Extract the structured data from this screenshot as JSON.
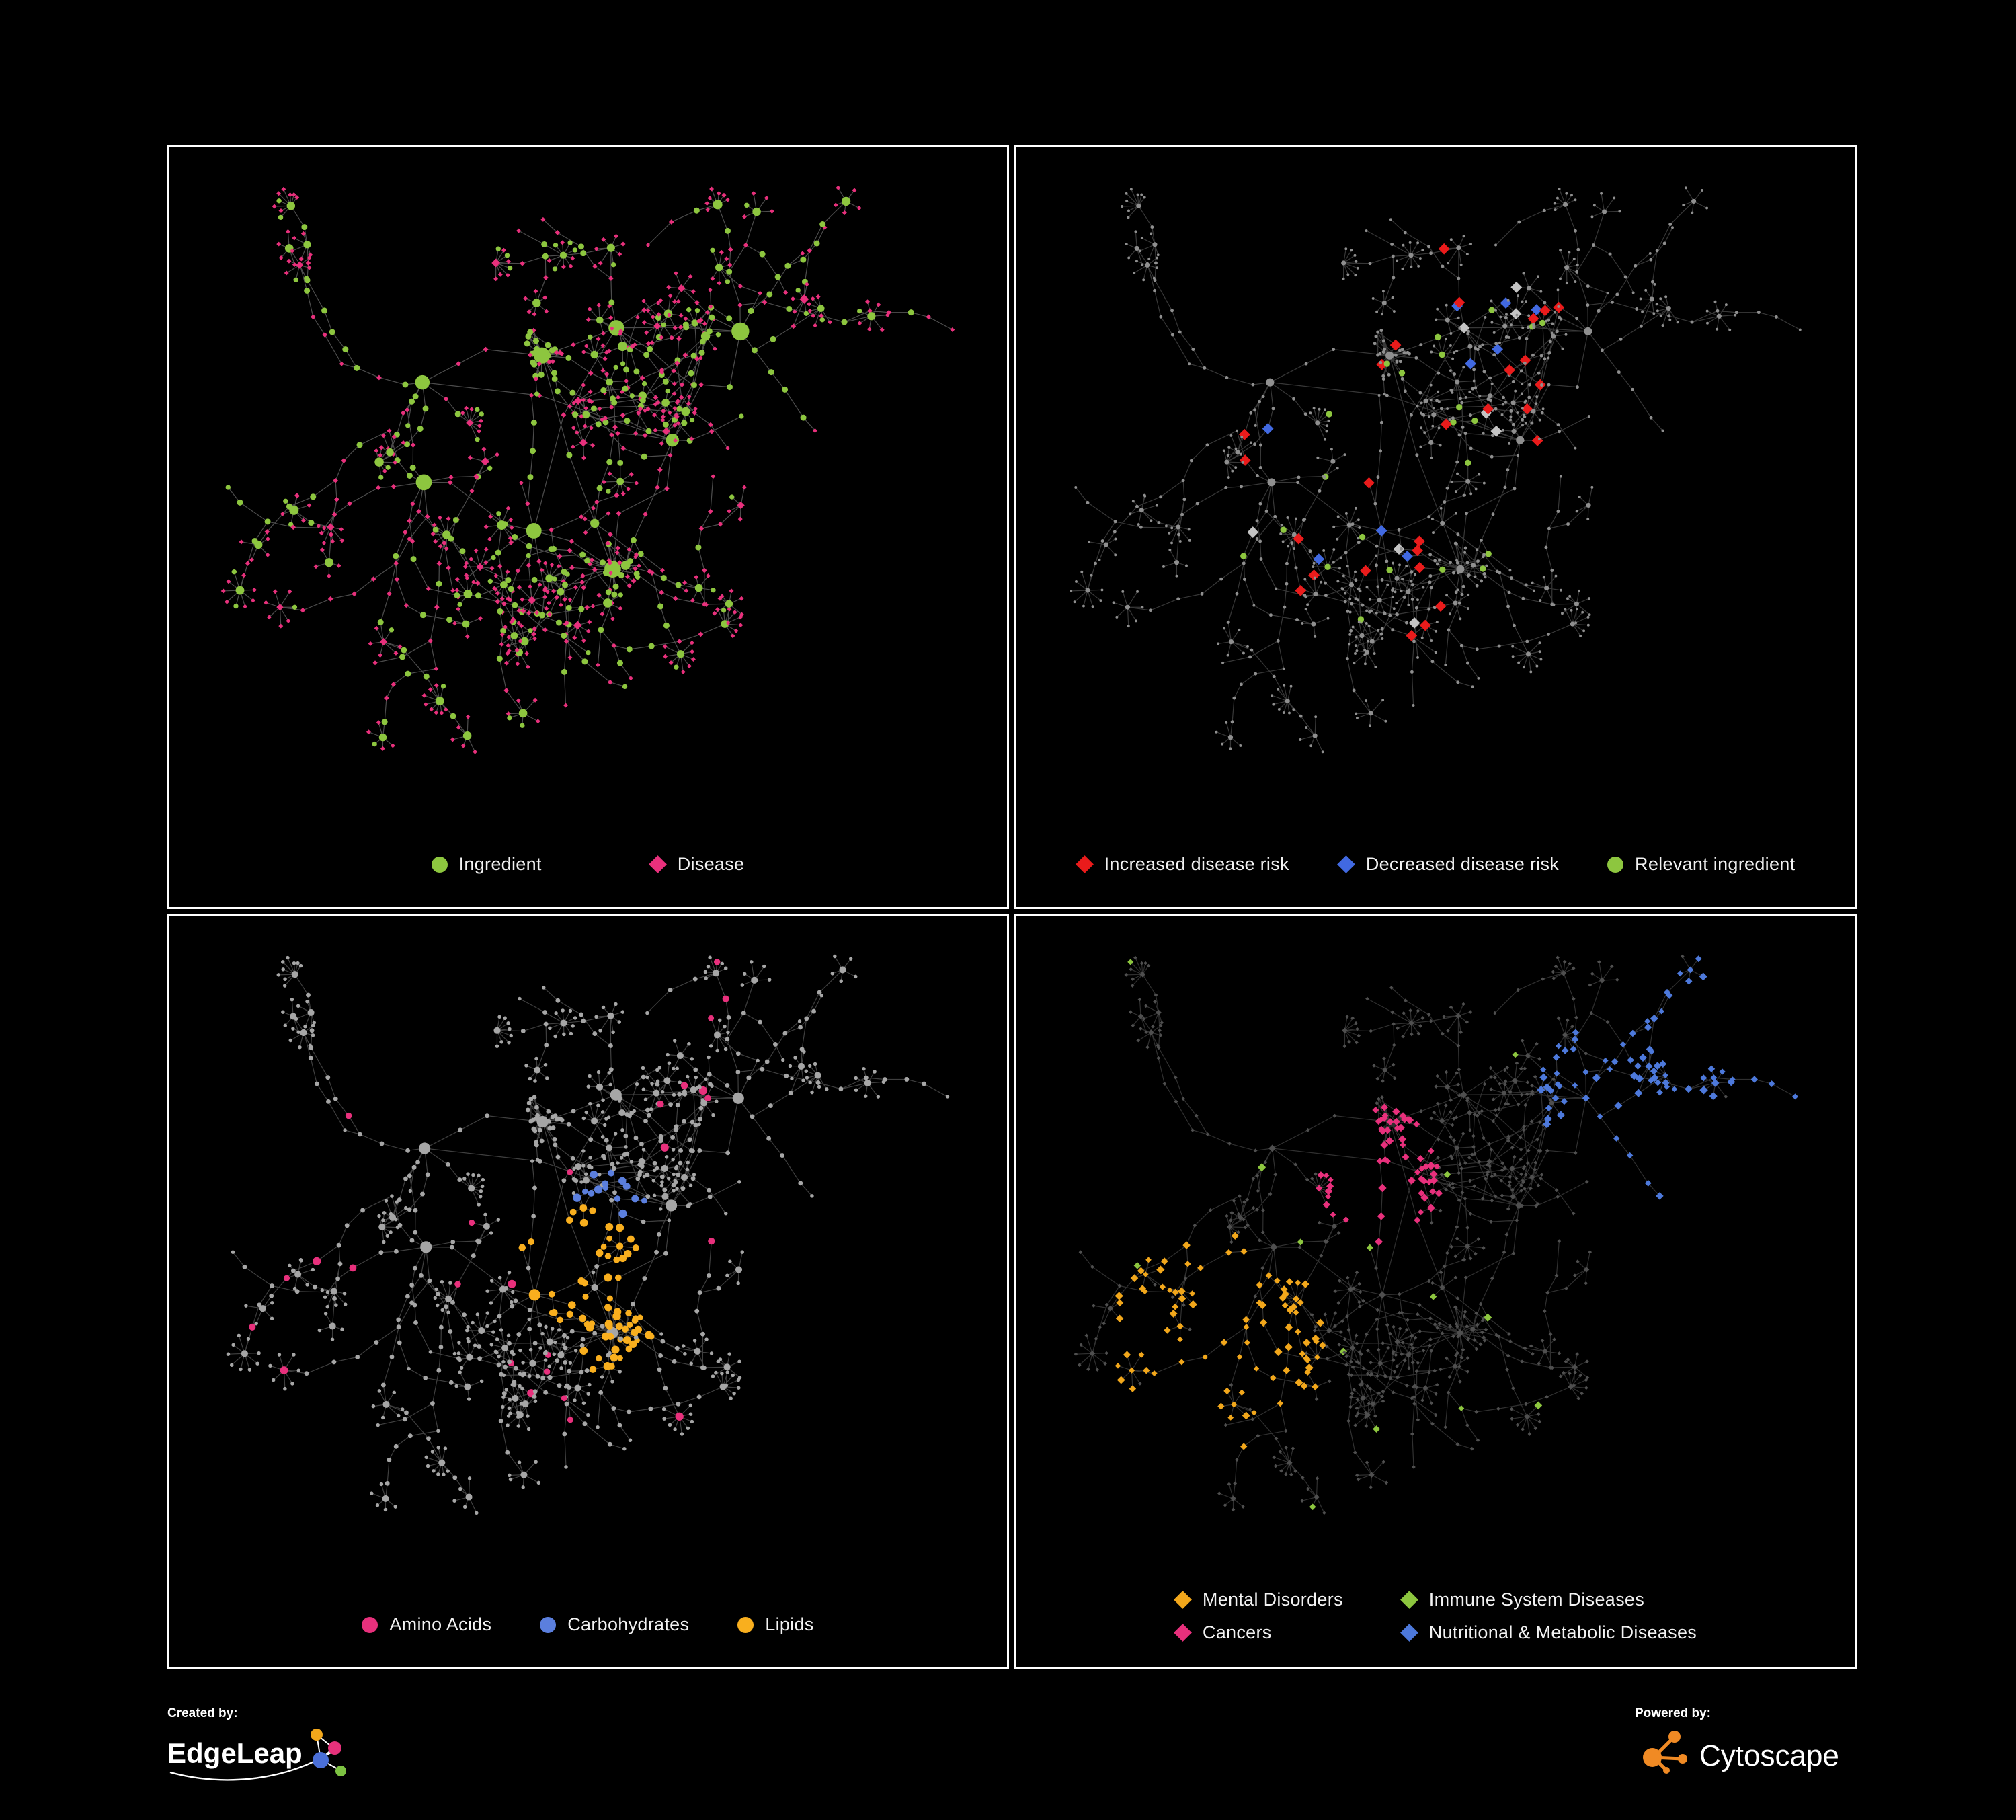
{
  "panels": [
    {
      "name": "ingredient-disease-network",
      "legend": [
        {
          "label": "Ingredient",
          "shape": "circle",
          "color": "#8DC63F"
        },
        {
          "label": "Disease",
          "shape": "diamond",
          "color": "#E8307C"
        }
      ],
      "legend_columns": 1,
      "style": {
        "mode": "bipartite",
        "edge": "#8A8A8A",
        "edge_opacity": 0.55,
        "primary": "#8DC63F",
        "secondary": "#E8307C"
      }
    },
    {
      "name": "disease-risk-network",
      "legend": [
        {
          "label": "Increased disease risk",
          "shape": "diamond",
          "color": "#EA1B1B"
        },
        {
          "label": "Decreased disease risk",
          "shape": "diamond",
          "color": "#4169E1"
        },
        {
          "label": "Relevant ingredient",
          "shape": "circle",
          "color": "#8DC63F"
        }
      ],
      "legend_columns": 1,
      "style": {
        "mode": "highlight",
        "edge": "#6E6E6E",
        "edge_opacity": 0.5,
        "base": "#8F8F8F",
        "highlights": [
          {
            "color": "#EA1B1B",
            "shape": "diamond",
            "count": 27,
            "bias": [
              600,
              420,
              340
            ]
          },
          {
            "color": "#4169E1",
            "shape": "diamond",
            "count": 9,
            "bias": [
              680,
              400,
              470
            ]
          },
          {
            "color": "#C4C4C4",
            "shape": "diamond",
            "count": 8,
            "bias": [
              580,
              430,
              260
            ]
          },
          {
            "color": "#8DC63F",
            "shape": "circle",
            "count": 22,
            "bias": [
              560,
              410,
              310
            ]
          }
        ]
      }
    },
    {
      "name": "nutrient-class-network",
      "legend": [
        {
          "label": "Amino Acids",
          "shape": "circle",
          "color": "#E8307C"
        },
        {
          "label": "Carbohydrates",
          "shape": "circle",
          "color": "#5B7FDE"
        },
        {
          "label": "Lipids",
          "shape": "circle",
          "color": "#F9AF1E"
        }
      ],
      "legend_columns": 1,
      "style": {
        "mode": "groups",
        "edge": "#7E7E7E",
        "edge_opacity": 0.5,
        "base": "#A6A6A6",
        "shape": "circle",
        "groups": [
          {
            "color": "#F9AF1E",
            "count": 68,
            "region": "center",
            "anchors": 2
          },
          {
            "color": "#5B7FDE",
            "count": 14,
            "region": "center",
            "anchors": 1
          },
          {
            "color": "#E8307C",
            "count": 26,
            "region": "scatter"
          }
        ]
      }
    },
    {
      "name": "disease-class-network",
      "legend": [
        {
          "label": "Mental Disorders",
          "shape": "diamond",
          "color": "#F2A71B"
        },
        {
          "label": "Cancers",
          "shape": "diamond",
          "color": "#E8307C"
        },
        {
          "label": "Immune System Diseases",
          "shape": "diamond",
          "color": "#8DC63F"
        },
        {
          "label": "Nutritional & Metabolic Diseases",
          "shape": "diamond",
          "color": "#4D79DB"
        }
      ],
      "legend_columns": 2,
      "style": {
        "mode": "groups",
        "edge": "#575757",
        "edge_opacity": 0.55,
        "base": "#4F4F4F",
        "shape": "diamond",
        "groups": [
          {
            "color": "#F2A71B",
            "count": 92,
            "region": "left",
            "anchors": 1,
            "shape": "diamond"
          },
          {
            "color": "#E8307C",
            "count": 62,
            "region": "center",
            "anchors": 2,
            "shape": "diamond"
          },
          {
            "color": "#4D79DB",
            "count": 80,
            "region": "right",
            "anchors": 3,
            "shape": "diamond"
          },
          {
            "color": "#8DC63F",
            "count": 14,
            "region": "scatter",
            "shape": "diamond"
          }
        ]
      }
    }
  ],
  "footer": {
    "created_by_label": "Created by:",
    "created_by_name": "EdgeLeap",
    "powered_by_label": "Powered by:",
    "powered_by_name": "Cytoscape"
  },
  "brand_colors": {
    "edgeleap_orange": "#F2A71B",
    "edgeleap_pink": "#E6317B",
    "edgeleap_blue": "#4A6FD8",
    "edgeleap_green": "#7DC242",
    "cytoscape_orange": "#F08A24"
  }
}
